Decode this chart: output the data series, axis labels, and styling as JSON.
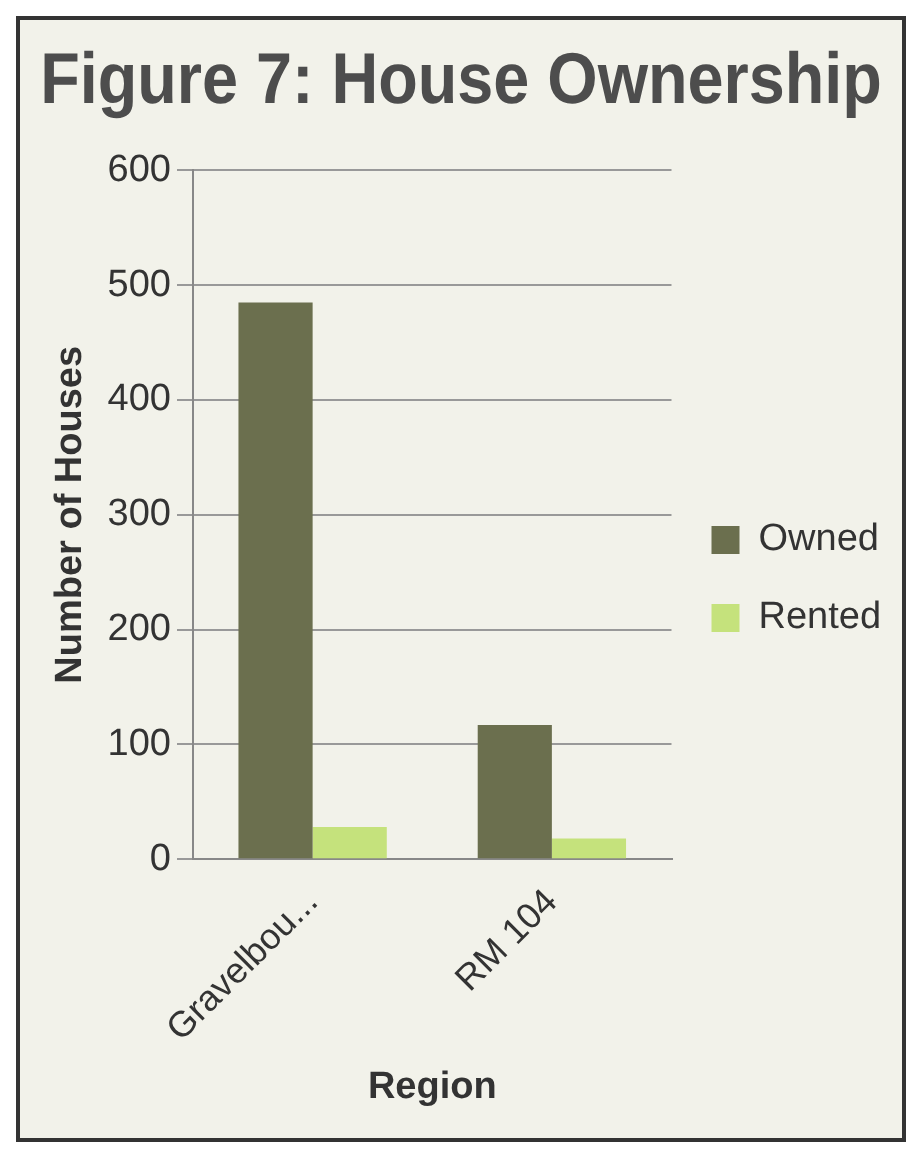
{
  "chart_data": {
    "type": "bar",
    "title": "Figure 7: House Ownership",
    "xlabel": "Region",
    "ylabel": "Number of Houses",
    "categories": [
      "Gravelbou...",
      "RM 104"
    ],
    "series": [
      {
        "name": "Owned",
        "color": "#6b6f4e",
        "values": [
          485,
          117
        ]
      },
      {
        "name": "Rented",
        "color": "#c5e27c",
        "values": [
          28,
          18
        ]
      }
    ],
    "ylim": [
      0,
      600
    ],
    "yticks": [
      0,
      100,
      200,
      300,
      400,
      500,
      600
    ],
    "grid": "y",
    "legend": "right"
  }
}
